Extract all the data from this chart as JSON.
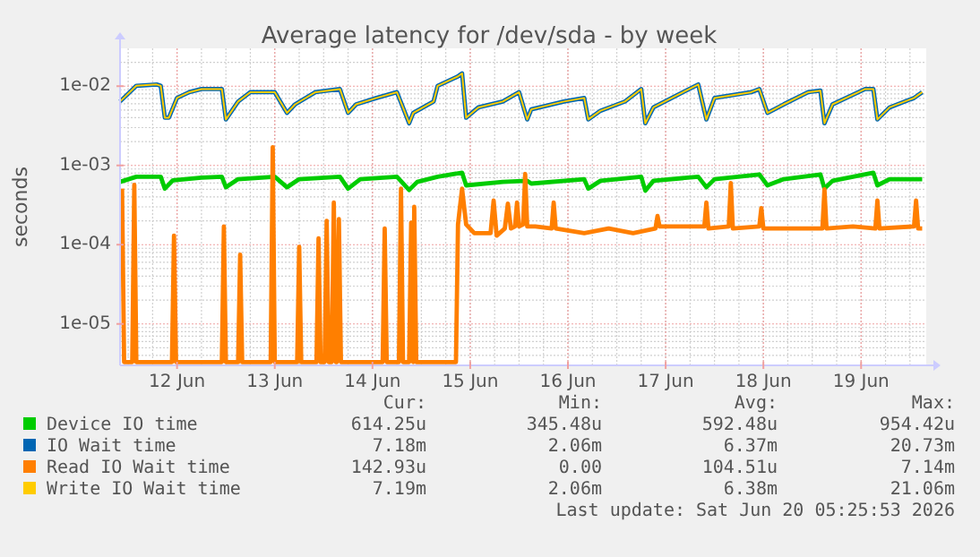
{
  "chart_data": {
    "type": "line",
    "title": "Average latency for /dev/sda - by week",
    "ylabel": "seconds",
    "log": "y",
    "grid": true,
    "legend": "bottom",
    "xlim": [
      "2026-06-11T10:00",
      "2026-06-19T16:00"
    ],
    "xticks": [
      {
        "value": "2026-06-12",
        "label": "12 Jun"
      },
      {
        "value": "2026-06-13",
        "label": "13 Jun"
      },
      {
        "value": "2026-06-14",
        "label": "14 Jun"
      },
      {
        "value": "2026-06-15",
        "label": "15 Jun"
      },
      {
        "value": "2026-06-16",
        "label": "16 Jun"
      },
      {
        "value": "2026-06-17",
        "label": "17 Jun"
      },
      {
        "value": "2026-06-18",
        "label": "18 Jun"
      },
      {
        "value": "2026-06-19",
        "label": "19 Jun"
      }
    ],
    "ylim": [
      3e-06,
      0.03
    ],
    "yticks": [
      {
        "value": 1e-05,
        "label": "1e-05"
      },
      {
        "value": 0.0001,
        "label": "1e-04"
      },
      {
        "value": 0.001,
        "label": "1e-03"
      },
      {
        "value": 0.01,
        "label": "1e-02"
      }
    ],
    "series": [
      {
        "name": "Device IO time",
        "color": "#00cc00",
        "x": [
          "2026-06-11T10:00",
          "2026-06-11T14:00",
          "2026-06-11T20:00",
          "2026-06-11T21:00",
          "2026-06-11T23:00",
          "2026-06-12T06:00",
          "2026-06-12T11:00",
          "2026-06-12T12:00",
          "2026-06-12T15:00",
          "2026-06-13T00:00",
          "2026-06-13T03:00",
          "2026-06-13T06:00",
          "2026-06-13T16:00",
          "2026-06-13T18:00",
          "2026-06-13T21:00",
          "2026-06-14T06:00",
          "2026-06-14T09:00",
          "2026-06-14T11:00",
          "2026-06-14T16:00",
          "2026-06-14T22:00",
          "2026-06-14T23:00",
          "2026-06-15T08:00",
          "2026-06-15T14:00",
          "2026-06-15T15:00",
          "2026-06-16T04:00",
          "2026-06-16T05:00",
          "2026-06-16T08:00",
          "2026-06-16T18:00",
          "2026-06-16T19:00",
          "2026-06-16T21:00",
          "2026-06-17T08:00",
          "2026-06-17T10:00",
          "2026-06-17T12:00",
          "2026-06-17T23:00",
          "2026-06-18T01:00",
          "2026-06-18T05:00",
          "2026-06-18T14:00",
          "2026-06-18T15:00",
          "2026-06-18T17:00",
          "2026-06-19T03:00",
          "2026-06-19T04:00",
          "2026-06-19T07:00",
          "2026-06-19T15:00"
        ],
        "values": [
          0.00062,
          0.00072,
          0.00072,
          0.00051,
          0.00065,
          0.0007,
          0.00072,
          0.00053,
          0.00067,
          0.00072,
          0.00053,
          0.00067,
          0.00072,
          0.00051,
          0.00067,
          0.00072,
          0.00049,
          0.00062,
          0.00072,
          0.00081,
          0.00056,
          0.00062,
          0.00064,
          0.00059,
          0.00067,
          0.00051,
          0.00064,
          0.00072,
          0.00048,
          0.00064,
          0.00072,
          0.00053,
          0.00067,
          0.00077,
          0.00056,
          0.00067,
          0.00077,
          0.00051,
          0.00064,
          0.00081,
          0.00056,
          0.00067,
          0.00067
        ]
      },
      {
        "name": "IO Wait time",
        "color": "#0066b3",
        "x": [
          "2026-06-11T10:00",
          "2026-06-11T14:00",
          "2026-06-11T19:00",
          "2026-06-11T20:00",
          "2026-06-11T21:00",
          "2026-06-11T22:00",
          "2026-06-12T00:00",
          "2026-06-12T03:00",
          "2026-06-12T06:00",
          "2026-06-12T11:00",
          "2026-06-12T12:00",
          "2026-06-12T15:00",
          "2026-06-12T18:00",
          "2026-06-13T00:00",
          "2026-06-13T03:00",
          "2026-06-13T05:00",
          "2026-06-13T10:00",
          "2026-06-13T16:00",
          "2026-06-13T18:00",
          "2026-06-13T20:00",
          "2026-06-14T01:00",
          "2026-06-14T06:00",
          "2026-06-14T09:00",
          "2026-06-14T10:00",
          "2026-06-14T15:00",
          "2026-06-14T16:00",
          "2026-06-14T21:00",
          "2026-06-14T22:00",
          "2026-06-14T23:00",
          "2026-06-15T02:00",
          "2026-06-15T08:00",
          "2026-06-15T12:00",
          "2026-06-15T14:00",
          "2026-06-15T15:00",
          "2026-06-15T23:00",
          "2026-06-16T04:00",
          "2026-06-16T05:00",
          "2026-06-16T08:00",
          "2026-06-16T14:00",
          "2026-06-16T18:00",
          "2026-06-16T19:00",
          "2026-06-16T21:00",
          "2026-06-17T03:00",
          "2026-06-17T08:00",
          "2026-06-17T10:00",
          "2026-06-17T12:00",
          "2026-06-17T21:00",
          "2026-06-17T23:00",
          "2026-06-18T01:00",
          "2026-06-18T05:00",
          "2026-06-18T11:00",
          "2026-06-18T14:00",
          "2026-06-18T15:00",
          "2026-06-18T17:00",
          "2026-06-19T01:00",
          "2026-06-19T03:00",
          "2026-06-19T04:00",
          "2026-06-19T07:00",
          "2026-06-19T13:00",
          "2026-06-19T15:00"
        ],
        "values": [
          0.0064,
          0.0101,
          0.0105,
          0.0101,
          0.004,
          0.004,
          0.0071,
          0.0084,
          0.0092,
          0.0092,
          0.0038,
          0.0064,
          0.0084,
          0.0084,
          0.0046,
          0.0059,
          0.0084,
          0.0092,
          0.0046,
          0.0059,
          0.0071,
          0.0084,
          0.0034,
          0.0046,
          0.0064,
          0.0101,
          0.0133,
          0.0145,
          0.004,
          0.0054,
          0.0064,
          0.0084,
          0.0038,
          0.0051,
          0.0064,
          0.0071,
          0.0038,
          0.0049,
          0.0064,
          0.0092,
          0.0034,
          0.0054,
          0.0078,
          0.0105,
          0.0038,
          0.0071,
          0.0084,
          0.0092,
          0.0046,
          0.0059,
          0.0084,
          0.0088,
          0.0034,
          0.0059,
          0.0092,
          0.0092,
          0.0038,
          0.0054,
          0.0071,
          0.0084
        ]
      },
      {
        "name": "Read IO Wait time",
        "color": "#ff7f00",
        "x": [
          "2026-06-11T10:30",
          "2026-06-11T11:00",
          "2026-06-11T13:00",
          "2026-06-11T13:30",
          "2026-06-11T14:00",
          "2026-06-11T22:45",
          "2026-06-11T23:15",
          "2026-06-11T23:45",
          "2026-06-12T11:00",
          "2026-06-12T11:30",
          "2026-06-12T12:00",
          "2026-06-12T15:00",
          "2026-06-12T15:30",
          "2026-06-12T16:00",
          "2026-06-12T23:00",
          "2026-06-12T23:30",
          "2026-06-13T00:00",
          "2026-06-13T05:30",
          "2026-06-13T06:00",
          "2026-06-13T06:30",
          "2026-06-13T10:15",
          "2026-06-13T10:45",
          "2026-06-13T11:15",
          "2026-06-13T12:15",
          "2026-06-13T12:45",
          "2026-06-13T13:15",
          "2026-06-13T14:00",
          "2026-06-13T14:30",
          "2026-06-13T15:00",
          "2026-06-13T15:15",
          "2026-06-13T15:45",
          "2026-06-13T16:15",
          "2026-06-14T02:30",
          "2026-06-14T03:00",
          "2026-06-14T03:30",
          "2026-06-14T06:30",
          "2026-06-14T07:00",
          "2026-06-14T07:30",
          "2026-06-14T09:00",
          "2026-06-14T09:30",
          "2026-06-14T10:00",
          "2026-06-14T10:15",
          "2026-06-14T10:45",
          "2026-06-14T20:30",
          "2026-06-14T21:00",
          "2026-06-14T22:00",
          "2026-06-14T23:00",
          "2026-06-15T01:00",
          "2026-06-15T05:00",
          "2026-06-15T05:45",
          "2026-06-15T06:30",
          "2026-06-15T08:30",
          "2026-06-15T09:15",
          "2026-06-15T10:00",
          "2026-06-15T11:00",
          "2026-06-15T11:30",
          "2026-06-15T12:00",
          "2026-06-15T13:00",
          "2026-06-15T13:30",
          "2026-06-15T14:00",
          "2026-06-15T16:00",
          "2026-06-15T20:00",
          "2026-06-15T20:30",
          "2026-06-15T21:00",
          "2026-06-16T04:00",
          "2026-06-16T10:00",
          "2026-06-16T16:00",
          "2026-06-16T21:30",
          "2026-06-16T22:00",
          "2026-06-16T22:30",
          "2026-06-17T04:00",
          "2026-06-17T09:30",
          "2026-06-17T10:00",
          "2026-06-17T10:30",
          "2026-06-17T15:30",
          "2026-06-17T16:00",
          "2026-06-17T16:30",
          "2026-06-17T23:00",
          "2026-06-17T23:30",
          "2026-06-18T00:00",
          "2026-06-18T07:00",
          "2026-06-18T14:30",
          "2026-06-18T15:00",
          "2026-06-18T15:30",
          "2026-06-18T22:00",
          "2026-06-19T03:30",
          "2026-06-19T04:00",
          "2026-06-19T04:30",
          "2026-06-19T13:00",
          "2026-06-19T13:30",
          "2026-06-19T14:00",
          "2026-06-19T15:00"
        ],
        "values": [
          0.00051,
          3.3e-06,
          3.3e-06,
          0.00057,
          3.3e-06,
          3.3e-06,
          0.00013,
          3.3e-06,
          3.3e-06,
          0.00017,
          3.3e-06,
          3.3e-06,
          7.5e-05,
          3.3e-06,
          3.3e-06,
          0.0017,
          3.3e-06,
          3.3e-06,
          9.4e-05,
          3.3e-06,
          3.3e-06,
          0.00012,
          3.3e-06,
          3.3e-06,
          0.0002,
          3.3e-06,
          3.3e-06,
          0.00034,
          3.3e-06,
          3.3e-06,
          0.00021,
          3.3e-06,
          3.3e-06,
          0.00016,
          3.3e-06,
          3.3e-06,
          0.00051,
          3.3e-06,
          3.3e-06,
          0.00019,
          3.3e-06,
          0.0003,
          3.3e-06,
          3.3e-06,
          0.00018,
          0.00051,
          0.00018,
          0.00014,
          0.00014,
          0.00036,
          0.00013,
          0.00016,
          0.00033,
          0.00016,
          0.00017,
          0.00034,
          0.00017,
          0.00018,
          0.00078,
          0.00017,
          0.00017,
          0.00016,
          0.00034,
          0.00016,
          0.00014,
          0.00016,
          0.00014,
          0.00016,
          0.00023,
          0.00017,
          0.00017,
          0.00017,
          0.00034,
          0.00016,
          0.00017,
          0.0006,
          0.00016,
          0.00017,
          0.00029,
          0.00016,
          0.00016,
          0.00016,
          0.0005,
          0.00016,
          0.00017,
          0.00016,
          0.00036,
          0.00016,
          0.00017,
          0.00036,
          0.00016,
          0.00016
        ]
      },
      {
        "name": "Write IO Wait time",
        "color": "#ffcc00",
        "x": [
          "2026-06-11T10:00",
          "2026-06-11T14:00",
          "2026-06-11T19:00",
          "2026-06-11T20:00",
          "2026-06-11T21:00",
          "2026-06-11T22:00",
          "2026-06-12T00:00",
          "2026-06-12T03:00",
          "2026-06-12T06:00",
          "2026-06-12T11:00",
          "2026-06-12T12:00",
          "2026-06-12T15:00",
          "2026-06-12T18:00",
          "2026-06-13T00:00",
          "2026-06-13T03:00",
          "2026-06-13T05:00",
          "2026-06-13T10:00",
          "2026-06-13T16:00",
          "2026-06-13T18:00",
          "2026-06-13T20:00",
          "2026-06-14T01:00",
          "2026-06-14T06:00",
          "2026-06-14T09:00",
          "2026-06-14T10:00",
          "2026-06-14T15:00",
          "2026-06-14T16:00",
          "2026-06-14T21:00",
          "2026-06-14T22:00",
          "2026-06-14T23:00",
          "2026-06-15T02:00",
          "2026-06-15T08:00",
          "2026-06-15T12:00",
          "2026-06-15T14:00",
          "2026-06-15T15:00",
          "2026-06-15T23:00",
          "2026-06-16T04:00",
          "2026-06-16T05:00",
          "2026-06-16T08:00",
          "2026-06-16T14:00",
          "2026-06-16T18:00",
          "2026-06-16T19:00",
          "2026-06-16T21:00",
          "2026-06-17T03:00",
          "2026-06-17T08:00",
          "2026-06-17T10:00",
          "2026-06-17T12:00",
          "2026-06-17T21:00",
          "2026-06-17T23:00",
          "2026-06-18T01:00",
          "2026-06-18T05:00",
          "2026-06-18T11:00",
          "2026-06-18T14:00",
          "2026-06-18T15:00",
          "2026-06-18T17:00",
          "2026-06-19T01:00",
          "2026-06-19T03:00",
          "2026-06-19T04:00",
          "2026-06-19T07:00",
          "2026-06-19T13:00",
          "2026-06-19T15:00"
        ],
        "values": [
          0.0064,
          0.0101,
          0.0105,
          0.0101,
          0.004,
          0.004,
          0.0071,
          0.0084,
          0.0092,
          0.0092,
          0.0038,
          0.0064,
          0.0084,
          0.0084,
          0.0046,
          0.0059,
          0.0084,
          0.0092,
          0.0046,
          0.0059,
          0.0071,
          0.0084,
          0.0034,
          0.0046,
          0.0064,
          0.0101,
          0.0133,
          0.0145,
          0.004,
          0.0054,
          0.0064,
          0.0084,
          0.0038,
          0.0051,
          0.0064,
          0.0071,
          0.0038,
          0.0049,
          0.0064,
          0.0092,
          0.0034,
          0.0054,
          0.0078,
          0.0105,
          0.0038,
          0.0071,
          0.0084,
          0.0092,
          0.0046,
          0.0059,
          0.0084,
          0.0088,
          0.0034,
          0.0059,
          0.0092,
          0.0092,
          0.0038,
          0.0054,
          0.0071,
          0.0084
        ]
      }
    ],
    "annotations": [
      "Cur:",
      "Min:",
      "Avg:",
      "Max:",
      "614.25u",
      "345.48u",
      "592.48u",
      "954.42u",
      "7.18m",
      "2.06m",
      "6.37m",
      "20.73m",
      "142.93u",
      "0.00",
      "104.51u",
      "7.14m",
      "7.19m",
      "2.06m",
      "6.38m",
      "21.06m",
      "Last update: Sat Jun 20 05:25:53 2026"
    ]
  }
}
